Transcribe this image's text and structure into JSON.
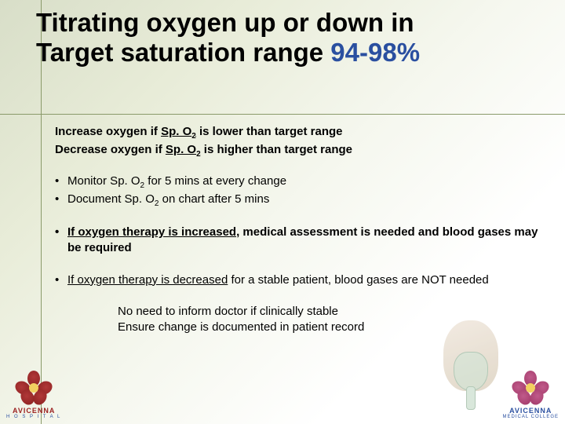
{
  "title": {
    "line1": "Titrating oxygen up or down in",
    "line2_prefix": "Target saturation range ",
    "line2_accent": "94-98%"
  },
  "lead": {
    "line1_pre": "Increase oxygen if ",
    "line1_u": "Sp. O",
    "line1_sub": "2",
    "line1_post": "  is lower than target range",
    "line2_pre": "Decrease oxygen if ",
    "line2_u": "Sp. O",
    "line2_sub": "2",
    "line2_post": " is higher than target range"
  },
  "bullets_plain": [
    {
      "pre": "Monitor Sp. O",
      "sub": "2",
      "post": " for 5 mins at every change"
    },
    {
      "pre": "Document Sp. O",
      "sub": "2",
      "post": " on chart after 5 mins"
    }
  ],
  "bullets_bold": [
    {
      "u": "If oxygen therapy is increased,",
      "rest": " medical assessment is needed and blood gases may be required"
    }
  ],
  "bullets_plain2": [
    {
      "u": "If oxygen therapy is decreased",
      "rest": " for a stable patient, blood gases are NOT needed"
    }
  ],
  "indent": {
    "l1": "No need to inform doctor if clinically stable",
    "l2": "Ensure change is documented in patient record"
  },
  "logos": {
    "left": {
      "name": "AVICENNA",
      "sub": "H O S P I T A L"
    },
    "right": {
      "name": "AVICENNA",
      "sub": "MEDICAL COLLEGE"
    }
  },
  "colors": {
    "accent": "#2a4fa0",
    "text": "#000000",
    "crosshair": "#8a9a6a",
    "bg_start": "#d8dec8",
    "bg_end": "#ffffff"
  },
  "typography": {
    "title_fontsize": 33,
    "body_fontsize": 15,
    "font_family": "Arial"
  }
}
